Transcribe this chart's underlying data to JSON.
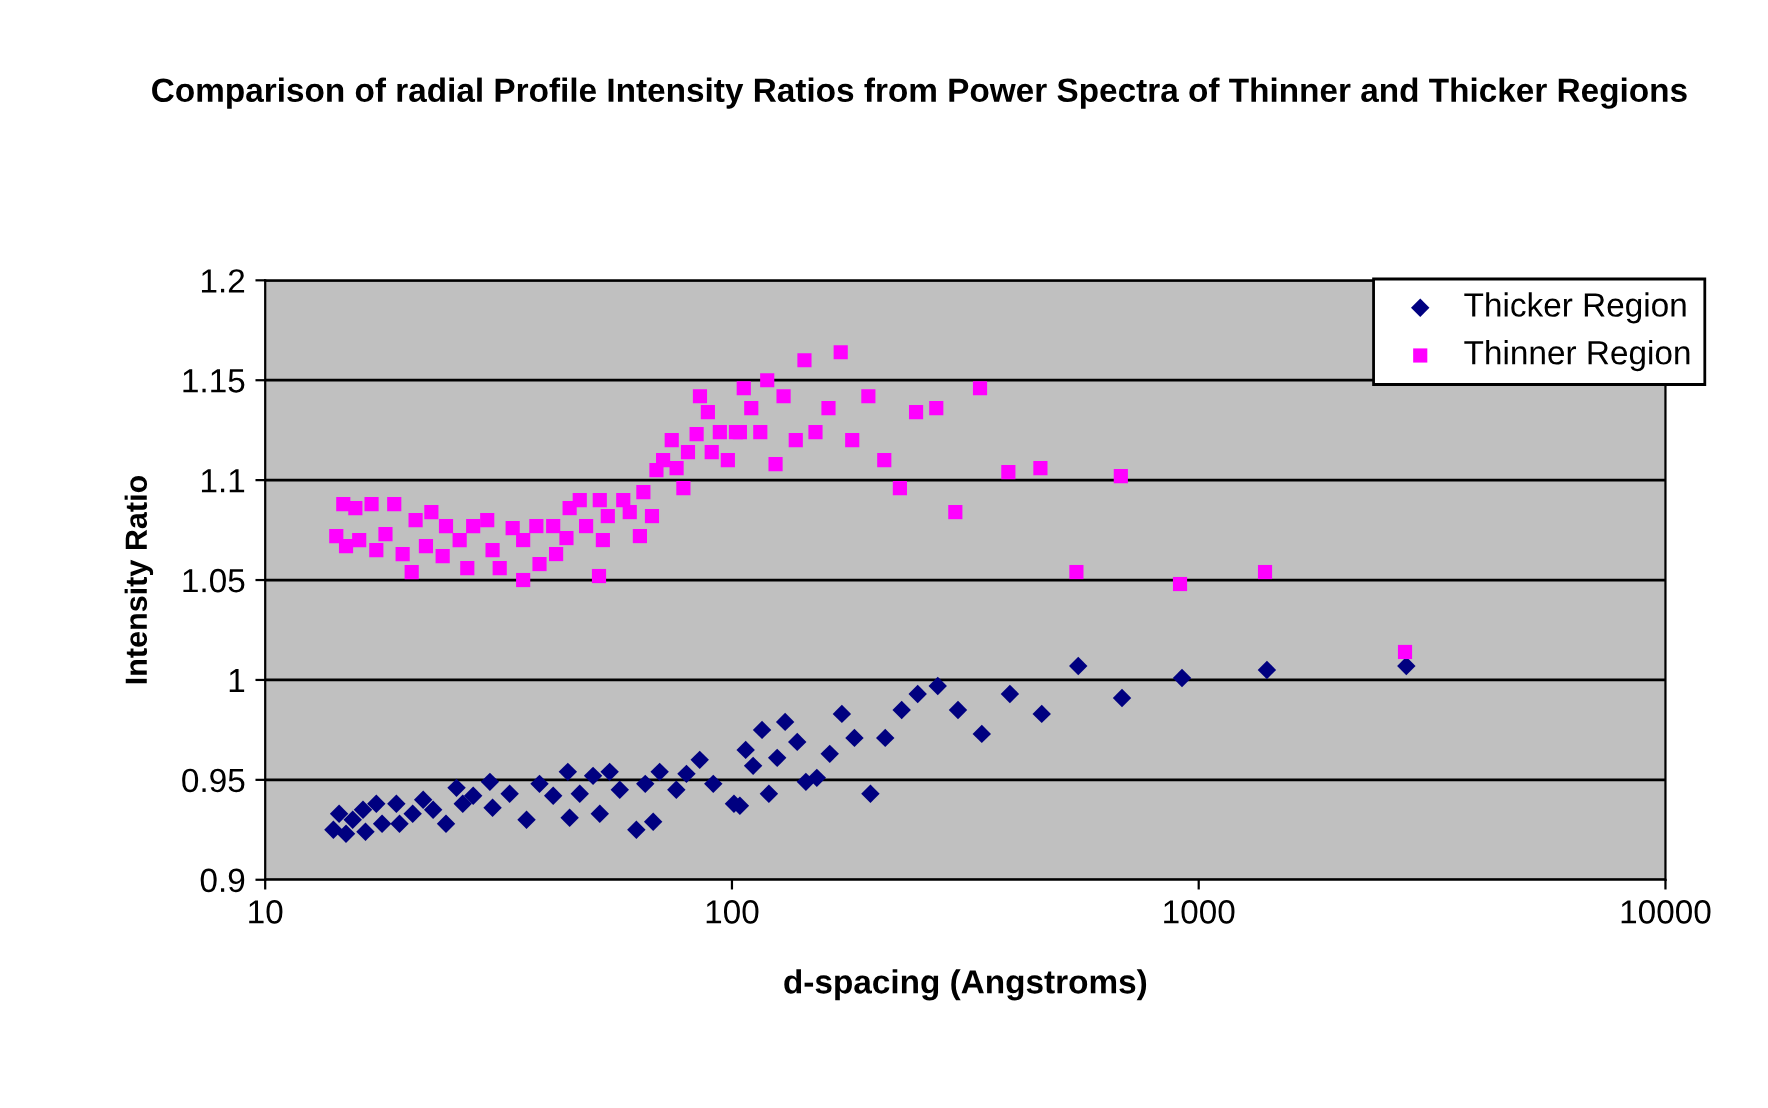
{
  "chart_data": {
    "type": "scatter",
    "title": "Comparison of radial Profile Intensity Ratios from Power Spectra of Thinner and Thicker Regions",
    "xlabel": "d-spacing (Angstroms)",
    "ylabel": "Intensity Ratio",
    "log": "x",
    "xlim": [
      10,
      10000
    ],
    "xticks": [
      10,
      100,
      1000,
      10000
    ],
    "ylim": [
      0.9,
      1.2
    ],
    "yticks": [
      0.9,
      0.95,
      1,
      1.05,
      1.1,
      1.15,
      1.2
    ],
    "grid": "y",
    "legend": "top right",
    "series": [
      {
        "name": "Thicker Region",
        "color": "#000080",
        "marker": "diamond",
        "x": [
          14.0,
          14.4,
          14.9,
          15.4,
          16.2,
          16.4,
          17.3,
          17.8,
          19.1,
          19.4,
          20.7,
          21.8,
          22.9,
          24.4,
          25.7,
          26.5,
          27.9,
          30.3,
          30.7,
          33.4,
          36.3,
          38.7,
          41.4,
          44.5,
          44.9,
          47.2,
          50.4,
          52.1,
          54.7,
          57.5,
          62.4,
          65.2,
          67.8,
          70.0,
          76.0,
          79.9,
          85.3,
          91.2,
          101,
          104,
          107,
          111,
          116,
          120,
          125,
          130,
          138,
          144,
          152,
          162,
          172,
          183,
          198,
          213,
          231,
          250,
          276,
          305,
          343,
          394,
          461,
          552,
          685,
          921,
          1400,
          2785
        ],
        "values": [
          0.925,
          0.933,
          0.923,
          0.93,
          0.935,
          0.924,
          0.938,
          0.928,
          0.938,
          0.928,
          0.933,
          0.94,
          0.935,
          0.928,
          0.946,
          0.938,
          0.942,
          0.949,
          0.936,
          0.943,
          0.93,
          0.948,
          0.942,
          0.954,
          0.931,
          0.943,
          0.952,
          0.933,
          0.954,
          0.945,
          0.925,
          0.948,
          0.929,
          0.954,
          0.945,
          0.953,
          0.96,
          0.948,
          0.938,
          0.937,
          0.965,
          0.957,
          0.975,
          0.943,
          0.961,
          0.979,
          0.969,
          0.949,
          0.951,
          0.963,
          0.983,
          0.971,
          0.943,
          0.971,
          0.985,
          0.993,
          0.997,
          0.985,
          0.973,
          0.993,
          0.983,
          1.007,
          0.991,
          1.001,
          1.005,
          1.007
        ]
      },
      {
        "name": "Thinner Region",
        "color": "#ff00ff",
        "marker": "square",
        "x": [
          14.2,
          14.7,
          14.9,
          15.6,
          15.9,
          16.9,
          17.3,
          18.1,
          18.9,
          19.7,
          20.6,
          21.0,
          22.1,
          22.7,
          24.0,
          24.4,
          26.1,
          27.1,
          27.9,
          29.9,
          30.7,
          31.8,
          33.9,
          35.7,
          35.7,
          38.1,
          38.7,
          41.4,
          42.0,
          44.2,
          44.9,
          47.2,
          48.7,
          51.9,
          52.1,
          52.9,
          54.2,
          58.5,
          60.4,
          63.5,
          64.6,
          67.4,
          68.9,
          71.2,
          74.3,
          76.1,
          78.7,
          80.5,
          84.0,
          85.4,
          88.8,
          90.5,
          94.2,
          98.0,
          102,
          104,
          106,
          110,
          115,
          119,
          124,
          129,
          137,
          143,
          151,
          161,
          171,
          181,
          196,
          212,
          229,
          248,
          274,
          301,
          340,
          391,
          458,
          547,
          681,
          912,
          1387,
          2767
        ],
        "values": [
          1.072,
          1.088,
          1.067,
          1.086,
          1.07,
          1.088,
          1.065,
          1.073,
          1.088,
          1.063,
          1.054,
          1.08,
          1.067,
          1.084,
          1.062,
          1.077,
          1.07,
          1.056,
          1.077,
          1.08,
          1.065,
          1.056,
          1.076,
          1.05,
          1.07,
          1.077,
          1.058,
          1.077,
          1.063,
          1.071,
          1.086,
          1.09,
          1.077,
          1.052,
          1.09,
          1.07,
          1.082,
          1.09,
          1.084,
          1.072,
          1.094,
          1.082,
          1.105,
          1.11,
          1.12,
          1.106,
          1.096,
          1.114,
          1.123,
          1.142,
          1.134,
          1.114,
          1.124,
          1.11,
          1.124,
          1.124,
          1.146,
          1.136,
          1.124,
          1.15,
          1.108,
          1.142,
          1.12,
          1.16,
          1.124,
          1.136,
          1.164,
          1.12,
          1.142,
          1.11,
          1.096,
          1.134,
          1.136,
          1.084,
          1.146,
          1.104,
          1.106,
          1.054,
          1.102,
          1.048,
          1.054,
          1.014
        ]
      }
    ]
  }
}
